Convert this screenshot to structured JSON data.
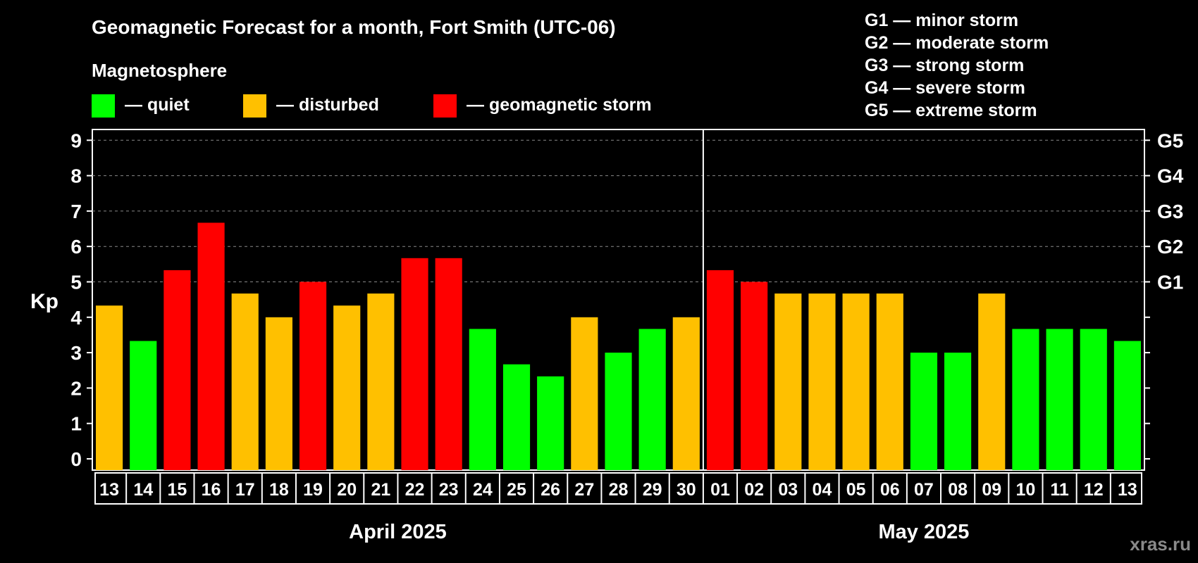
{
  "title": "Geomagnetic Forecast for a month, Fort Smith (UTC-06)",
  "legend": {
    "heading": "Magnetosphere",
    "items": [
      {
        "label": "— quiet",
        "color": "#00ff00"
      },
      {
        "label": "— disturbed",
        "color": "#ffc000"
      },
      {
        "label": "— geomagnetic storm",
        "color": "#ff0000"
      }
    ]
  },
  "storm_scale": [
    "G1 — minor storm",
    "G2 — moderate storm",
    "G3 — strong storm",
    "G4 — severe storm",
    "G5 — extreme storm"
  ],
  "watermark": "xras.ru",
  "colors": {
    "quiet": "#00ff00",
    "disturbed": "#ffc000",
    "storm": "#ff0000",
    "grid": "#888888"
  },
  "chart_data": {
    "type": "bar",
    "ylabel": "Kp",
    "ylim": [
      0,
      9
    ],
    "yticks": [
      "0",
      "1",
      "2",
      "3",
      "4",
      "5",
      "6",
      "7",
      "8",
      "9"
    ],
    "g_ticks": [
      {
        "kp": 5,
        "label": "G1"
      },
      {
        "kp": 6,
        "label": "G2"
      },
      {
        "kp": 7,
        "label": "G3"
      },
      {
        "kp": 8,
        "label": "G4"
      },
      {
        "kp": 9,
        "label": "G5"
      }
    ],
    "grid": true,
    "categories": [
      "13",
      "14",
      "15",
      "16",
      "17",
      "18",
      "19",
      "20",
      "21",
      "22",
      "23",
      "24",
      "25",
      "26",
      "27",
      "28",
      "29",
      "30",
      "01",
      "02",
      "03",
      "04",
      "05",
      "06",
      "07",
      "08",
      "09",
      "10",
      "11",
      "12",
      "13"
    ],
    "values": [
      4.33,
      3.33,
      5.33,
      6.67,
      4.67,
      4.0,
      5.0,
      4.33,
      4.67,
      5.67,
      5.67,
      3.67,
      2.67,
      2.33,
      4.0,
      3.0,
      3.67,
      4.0,
      5.33,
      5.0,
      4.67,
      4.67,
      4.67,
      4.67,
      3.0,
      3.0,
      4.67,
      3.67,
      3.67,
      3.67,
      3.33
    ],
    "levels": [
      "disturbed",
      "quiet",
      "storm",
      "storm",
      "disturbed",
      "disturbed",
      "storm",
      "disturbed",
      "disturbed",
      "storm",
      "storm",
      "quiet",
      "quiet",
      "quiet",
      "disturbed",
      "quiet",
      "quiet",
      "disturbed",
      "storm",
      "storm",
      "disturbed",
      "disturbed",
      "disturbed",
      "disturbed",
      "quiet",
      "quiet",
      "disturbed",
      "quiet",
      "quiet",
      "quiet",
      "quiet"
    ],
    "months": [
      {
        "label": "April 2025",
        "count": 18
      },
      {
        "label": "May 2025",
        "count": 13
      }
    ]
  }
}
